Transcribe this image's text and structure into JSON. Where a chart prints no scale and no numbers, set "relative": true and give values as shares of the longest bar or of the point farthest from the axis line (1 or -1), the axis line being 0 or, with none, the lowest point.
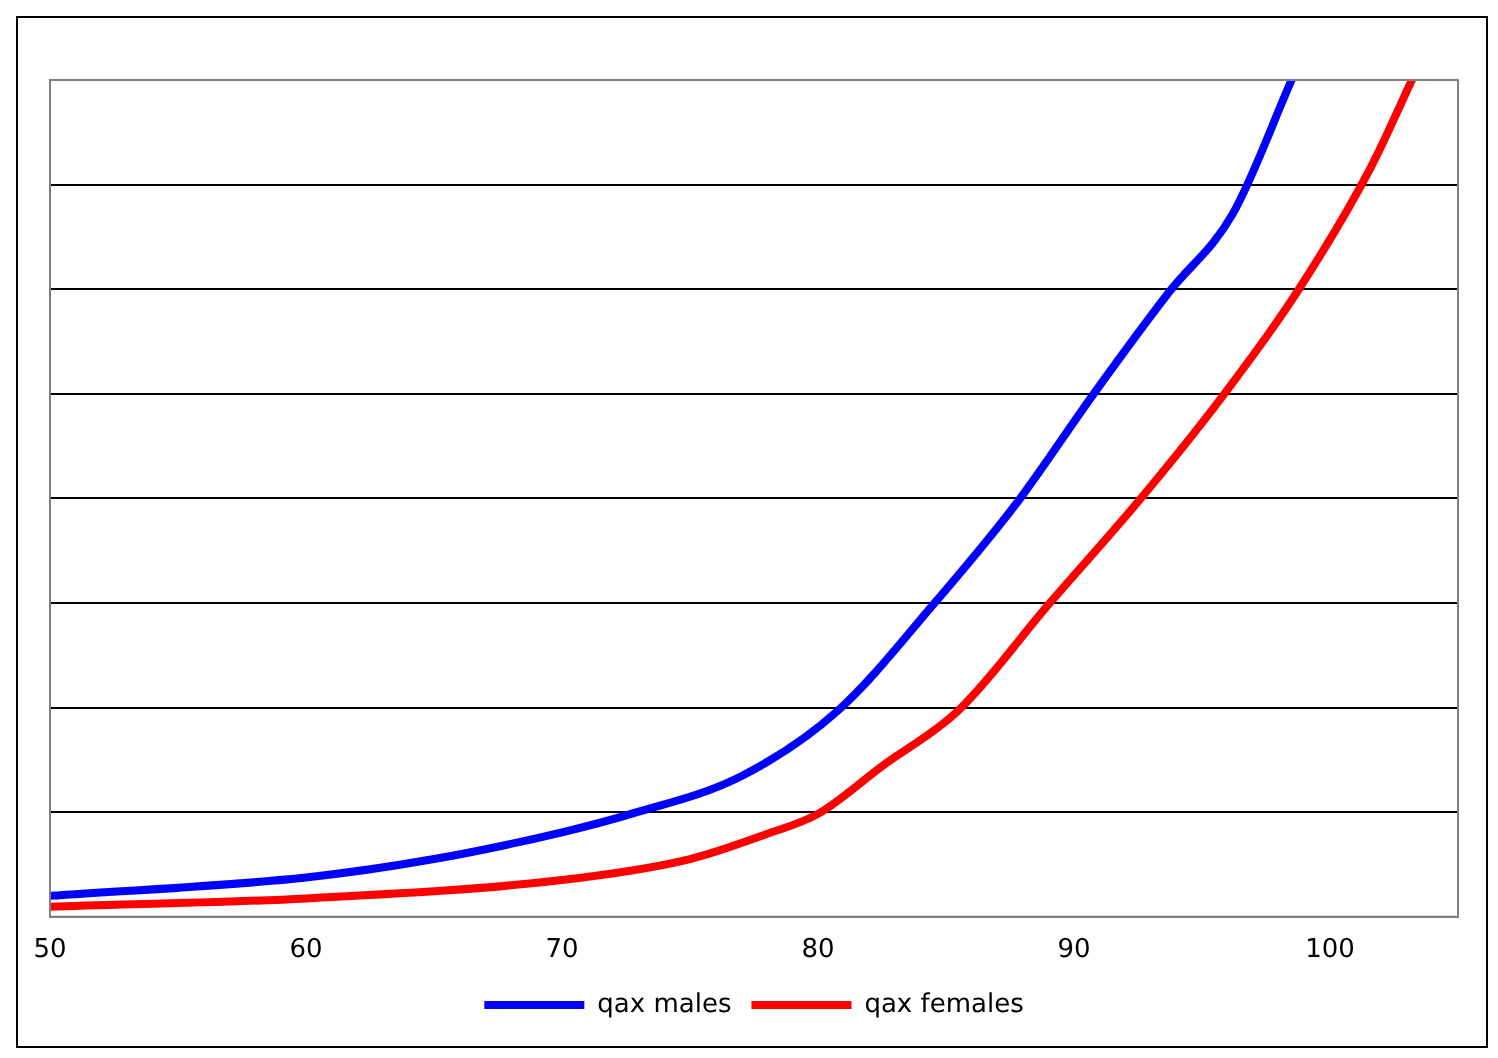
{
  "chart_data": {
    "type": "line",
    "relative": true,
    "xlim": [
      50,
      105
    ],
    "xticks": [
      50,
      60,
      70,
      80,
      90,
      100
    ],
    "grid": "y",
    "legend": "bottom",
    "marker": "none",
    "line_style": "solid",
    "series": [
      {
        "name": "qax males",
        "color": "#0000ff",
        "x": [
          50,
          60,
          65,
          70,
          72.7,
          77,
          80.8,
          84.5,
          87.8,
          90.7,
          93.7,
          96.2,
          98.5
        ],
        "values": [
          0.025,
          0.047,
          0.069,
          0.101,
          0.123,
          0.168,
          0.247,
          0.373,
          0.496,
          0.622,
          0.746,
          0.84,
          1
        ]
      },
      {
        "name": "qax females",
        "color": "#ff0000",
        "x": [
          50,
          60,
          70,
          75,
          78,
          80,
          82.5,
          85.5,
          89,
          92.5,
          95.8,
          98.7,
          101.6,
          103.2
        ],
        "values": [
          0.012,
          0.022,
          0.044,
          0.069,
          0.099,
          0.123,
          0.18,
          0.247,
          0.373,
          0.496,
          0.622,
          0.746,
          0.896,
          1
        ]
      }
    ]
  }
}
